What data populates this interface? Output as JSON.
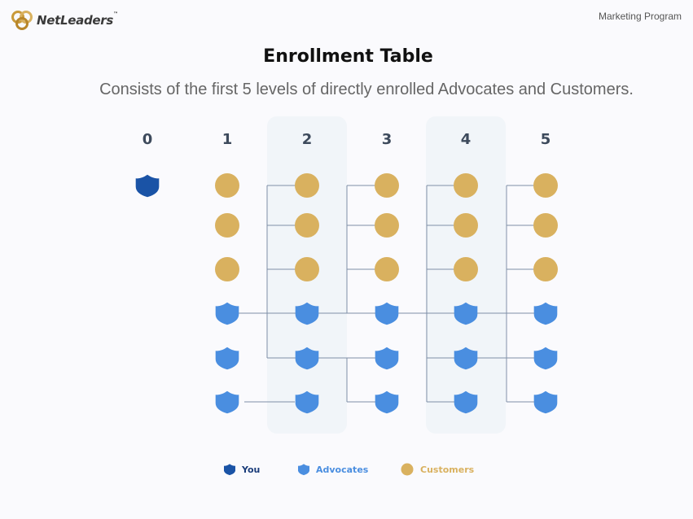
{
  "header": {
    "brand": "NetLeaders",
    "brand_tm": "™",
    "program_label": "Marketing Program"
  },
  "title": "Enrollment Table",
  "subtitle": "Consists of the first 5 levels of directly enrolled Advocates and Customers.",
  "diagram": {
    "levels": [
      "0",
      "1",
      "2",
      "3",
      "4",
      "5"
    ],
    "rows_per_level": [
      "customer",
      "customer",
      "customer",
      "advocate",
      "advocate",
      "advocate"
    ],
    "root": "you",
    "highlighted_levels": [
      "2",
      "4"
    ]
  },
  "legend": {
    "you": "You",
    "advocates": "Advocates",
    "customers": "Customers"
  },
  "colors": {
    "you": "#1a53a6",
    "advocate": "#4a8ee0",
    "customer": "#d9b15f",
    "highlight_band": "#f1f5f9",
    "connector": "#7e8fa6",
    "level_label": "#3d4a5c",
    "legend_you_text": "#1a3c7a",
    "legend_advocate_text": "#4a8ee0",
    "legend_customer_text": "#d9b15f"
  }
}
